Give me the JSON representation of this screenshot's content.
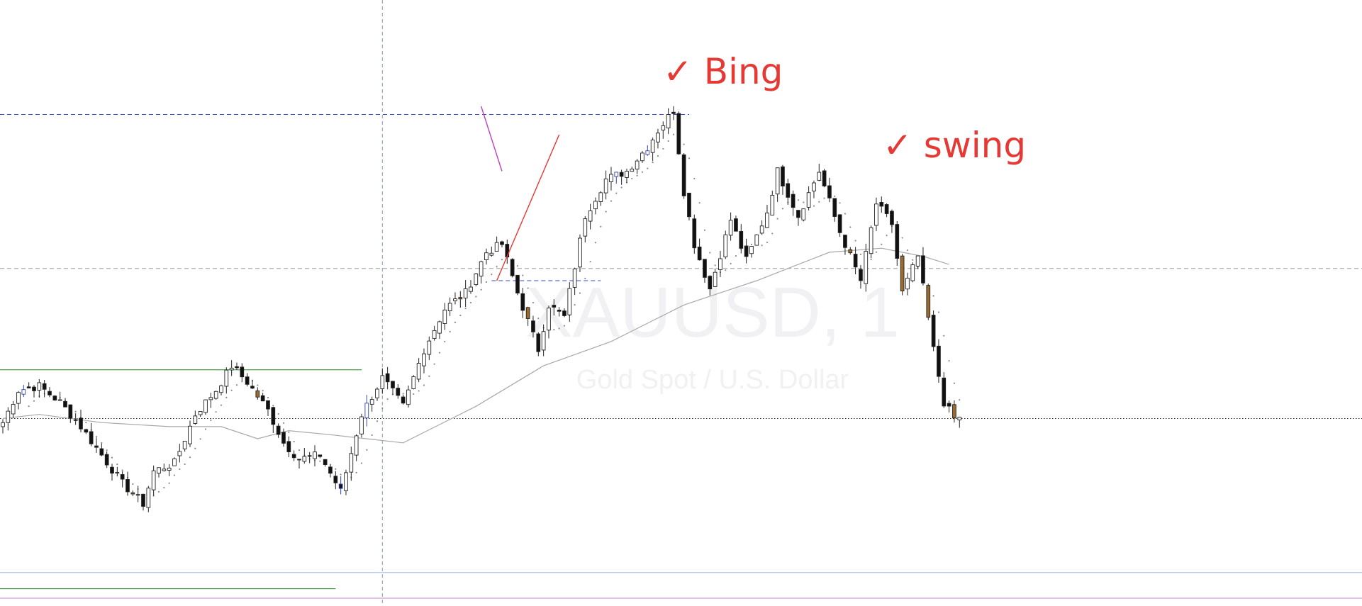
{
  "chart_data": {
    "type": "candlestick",
    "symbol": "XAUUSD, 1",
    "description": "Gold Spot / U.S. Dollar",
    "x": {
      "first_bar": 1,
      "last_bar": 185
    },
    "ylim": [
      0,
      100
    ],
    "close_path": [
      [
        1,
        22
      ],
      [
        4,
        30
      ],
      [
        8,
        31
      ],
      [
        12,
        27
      ],
      [
        16,
        21
      ],
      [
        20,
        14
      ],
      [
        24,
        7
      ],
      [
        28,
        2
      ],
      [
        30,
        10
      ],
      [
        34,
        12
      ],
      [
        38,
        24
      ],
      [
        42,
        30
      ],
      [
        45,
        36
      ],
      [
        48,
        32
      ],
      [
        52,
        25
      ],
      [
        55,
        17
      ],
      [
        58,
        13
      ],
      [
        62,
        14
      ],
      [
        66,
        5
      ],
      [
        70,
        24
      ],
      [
        74,
        33
      ],
      [
        78,
        26
      ],
      [
        82,
        40
      ],
      [
        86,
        50
      ],
      [
        90,
        54
      ],
      [
        94,
        64
      ],
      [
        97,
        66
      ],
      [
        100,
        54
      ],
      [
        104,
        40
      ],
      [
        106,
        51
      ],
      [
        109,
        48
      ],
      [
        113,
        73
      ],
      [
        117,
        82
      ],
      [
        121,
        84
      ],
      [
        125,
        90
      ],
      [
        127,
        94
      ],
      [
        130,
        99
      ],
      [
        132,
        79
      ],
      [
        134,
        66
      ],
      [
        137,
        55
      ],
      [
        141,
        72
      ],
      [
        144,
        62
      ],
      [
        148,
        74
      ],
      [
        150,
        84
      ],
      [
        154,
        73
      ],
      [
        158,
        84
      ],
      [
        162,
        69
      ],
      [
        166,
        57
      ],
      [
        169,
        76
      ],
      [
        172,
        71
      ],
      [
        174,
        54
      ],
      [
        177,
        63
      ],
      [
        180,
        40
      ],
      [
        182,
        27
      ],
      [
        184,
        23
      ],
      [
        185,
        23
      ]
    ],
    "moving_average_slow": [
      [
        1,
        23
      ],
      [
        8,
        24
      ],
      [
        20,
        22
      ],
      [
        33,
        21
      ],
      [
        43,
        21
      ],
      [
        50,
        18
      ],
      [
        56,
        20
      ],
      [
        64,
        19
      ],
      [
        78,
        17
      ],
      [
        92,
        26
      ],
      [
        105,
        36
      ],
      [
        118,
        42
      ],
      [
        132,
        51
      ],
      [
        146,
        57
      ],
      [
        160,
        64
      ],
      [
        170,
        65
      ],
      [
        178,
        63
      ],
      [
        183,
        61
      ]
    ],
    "moving_average_fast_dotted": true,
    "horizontal_levels": [
      {
        "name": "blue-dashed-top",
        "value": 98,
        "color": "#3a48c8",
        "style": "dashed",
        "from_bar": 1,
        "to_bar": 133
      },
      {
        "name": "gray-dashed-mid",
        "value": 60,
        "color": "#9a9a9a",
        "style": "dashed",
        "from_bar": 1,
        "to_bar": 185
      },
      {
        "name": "green-upper",
        "value": 35,
        "color": "#1c8a1c",
        "style": "solid",
        "from_bar": 1,
        "to_bar": 70
      },
      {
        "name": "black-dotted-price",
        "value": 23,
        "color": "#222222",
        "style": "dotted",
        "from_bar": 1,
        "to_bar": 185
      },
      {
        "name": "lightblue-lower",
        "value": -15,
        "color": "#9fb7ee",
        "style": "solid",
        "from_bar": 1,
        "to_bar": 185
      },
      {
        "name": "green-lower",
        "value": -19,
        "color": "#1c8a1c",
        "style": "solid",
        "from_bar": 1,
        "to_bar": 65
      },
      {
        "name": "navy-dashed-swinglow",
        "value": 57,
        "color": "#3a48c8",
        "style": "dashed",
        "from_bar": 95,
        "to_bar": 116
      }
    ],
    "vertical_line": {
      "bar": 74,
      "color": "#8a9ab4",
      "style": "dashed"
    },
    "trendlines": [
      {
        "name": "purple-drop",
        "color": "#c040c0",
        "from": [
          93,
          100
        ],
        "to": [
          97,
          84
        ]
      },
      {
        "name": "red-rise",
        "color": "#e53935",
        "from": [
          96,
          57
        ],
        "to": [
          108,
          93
        ]
      }
    ],
    "annotations": [
      {
        "text": "✓ Bing",
        "color": "#e53935",
        "near_bar": 100
      },
      {
        "text": "✓ swing",
        "color": "#e53935",
        "near_bar": 135
      }
    ]
  }
}
